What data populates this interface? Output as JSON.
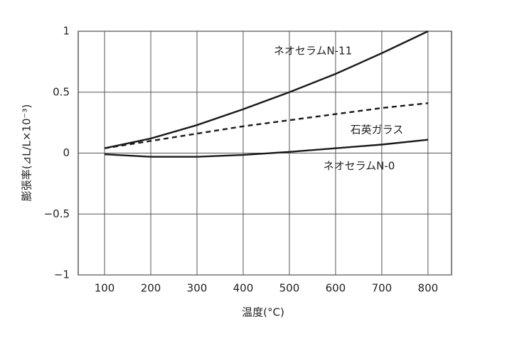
{
  "chart_data": {
    "type": "line",
    "x_label": "温度(°C)",
    "y_label": "膨張率(⊿L/L×10⁻³)",
    "x": [
      100,
      200,
      300,
      400,
      500,
      600,
      700,
      800
    ],
    "series": [
      {
        "name": "ネオセラムN-11",
        "color": "#1a1a1a",
        "dash": false,
        "values": [
          0.04,
          0.12,
          0.23,
          0.36,
          0.5,
          0.65,
          0.82,
          1.0
        ]
      },
      {
        "name": "石英ガラス",
        "color": "#1a1a1a",
        "dash": true,
        "values": [
          0.04,
          0.1,
          0.16,
          0.22,
          0.27,
          0.32,
          0.37,
          0.41
        ]
      },
      {
        "name": "ネオセラムN-0",
        "color": "#1a1a1a",
        "dash": false,
        "values": [
          -0.01,
          -0.03,
          -0.03,
          -0.015,
          0.01,
          0.04,
          0.07,
          0.11
        ]
      }
    ],
    "xlim": [
      43,
      851
    ],
    "xticks": [
      100,
      200,
      300,
      400,
      500,
      600,
      700,
      800
    ],
    "ylim": [
      -1,
      1
    ],
    "yticks": [
      {
        "value": -1,
        "label": "−1"
      },
      {
        "value": -0.5,
        "label": "−0.5"
      },
      0,
      0.5,
      1
    ],
    "grid": true
  }
}
